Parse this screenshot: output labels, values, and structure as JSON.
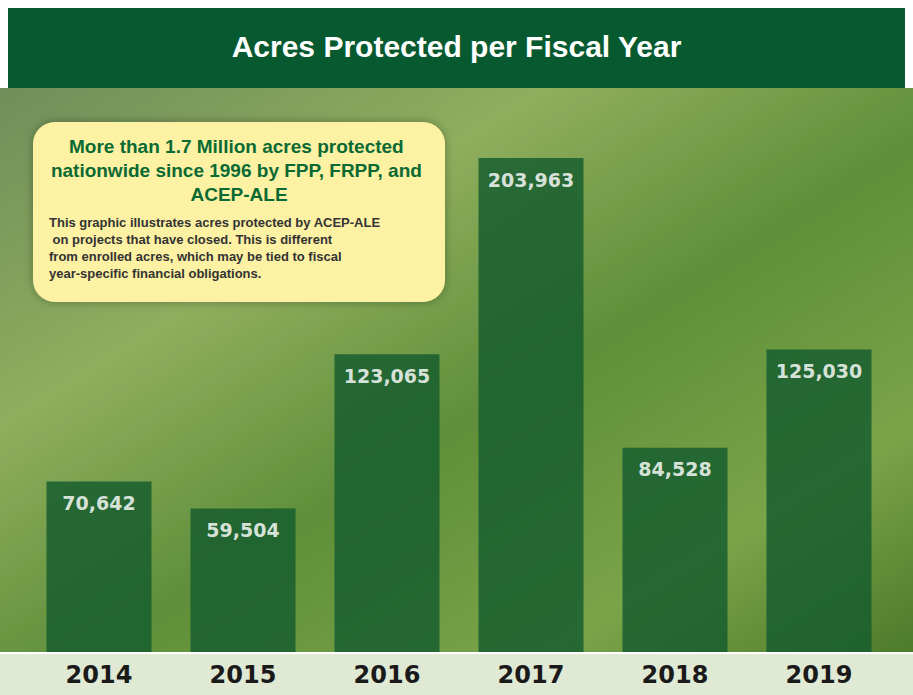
{
  "chart_data": {
    "type": "bar",
    "title": "Acres Protected per Fiscal Year",
    "annotations": [
      {
        "title": "More than 1.7 Million acres protected nationwide since 1996 by FPP, FRPP, and ACEP-ALE",
        "text": "This graphic illustrates acres protected by ACEP-ALE on projects that have closed. This is different from enrolled acres, which may be tied to fiscal year-specific financial obligations."
      }
    ],
    "categories": [
      "2014",
      "2015",
      "2016",
      "2017",
      "2018",
      "2019"
    ],
    "values": [
      70642,
      59504,
      123065,
      203963,
      84528,
      125030
    ],
    "value_labels": [
      "70,642",
      "59,504",
      "123,065",
      "203,963",
      "84,528",
      "125,030"
    ],
    "color": "#145c2e",
    "data_labels": true,
    "tick_labels": "x",
    "grid": false
  }
}
